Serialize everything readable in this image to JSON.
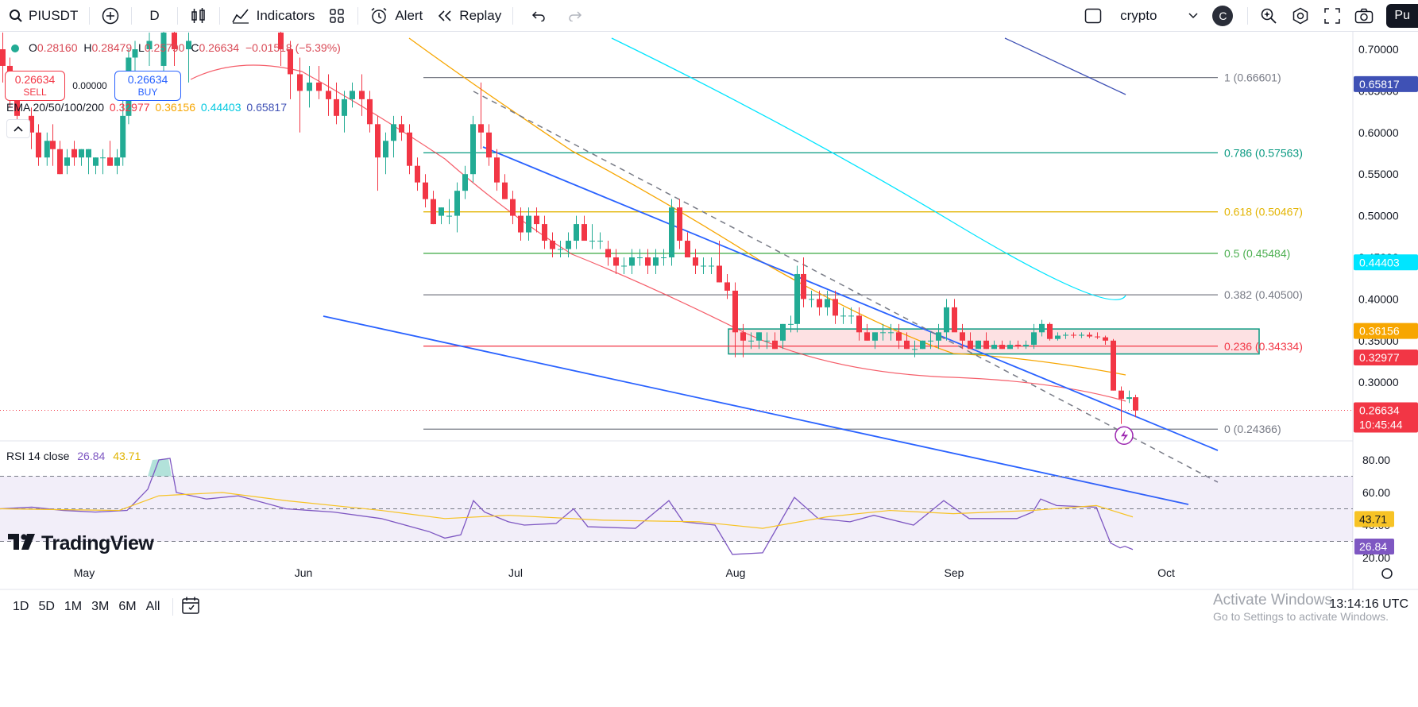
{
  "toolbar": {
    "symbol": "PIUSDT",
    "interval": "D",
    "indicators": "Indicators",
    "alert": "Alert",
    "replay": "Replay",
    "layout_name": "crypto",
    "user_initial": "C",
    "publish": "Pu"
  },
  "legend": {
    "o_label": "O",
    "o": "0.28160",
    "h_label": "H",
    "h": "0.28479",
    "l_label": "L",
    "l": "0.25790",
    "c_label": "C",
    "c": "0.26634",
    "change": "−0.01518 (−5.39%)",
    "sell_price": "0.26634",
    "sell_label": "SELL",
    "spread": "0.00000",
    "buy_price": "0.26634",
    "buy_label": "BUY",
    "ema_label": "EMA 20/50/100/200",
    "ema20": "0.32977",
    "ema50": "0.36156",
    "ema100": "0.44403",
    "ema200": "0.65817"
  },
  "rsi": {
    "label": "RSI 14 close",
    "value": "26.84",
    "ma": "43.71"
  },
  "brand": "TradingView",
  "timeframes": [
    "1D",
    "5D",
    "1M",
    "3M",
    "6M",
    "All"
  ],
  "clock": "13:14:16 UTC",
  "windows_notice": {
    "title": "Activate Windows",
    "subtitle": "Go to Settings to activate Windows."
  },
  "colors": {
    "up": "#22ab94",
    "down": "#f23645",
    "ema20": "#f23645",
    "ema50": "#f7a600",
    "ema100": "#00e5ff",
    "ema200": "#3f51b5",
    "channel": "#2962ff",
    "rsi": "#7e57c2",
    "rsi_ma": "#f7c325"
  },
  "chart_data": {
    "type": "candlestick",
    "x_labels": [
      "May",
      "Jun",
      "Jul",
      "Aug",
      "Sep",
      "Oct"
    ],
    "price_ticks": [
      "0.70000",
      "0.65000",
      "0.60000",
      "0.55000",
      "0.50000",
      "0.45000",
      "0.40000",
      "0.35000",
      "0.30000"
    ],
    "rsi_ticks": [
      "80.00",
      "60.00",
      "40.00",
      "20.00"
    ],
    "price_labels": [
      {
        "value": 0.65817,
        "text": "0.65817",
        "color": "#3f51b5"
      },
      {
        "value": 0.44403,
        "text": "0.44403",
        "color": "#00e5ff"
      },
      {
        "value": 0.36156,
        "text": "0.36156",
        "color": "#f7a600"
      },
      {
        "value": 0.32977,
        "text": "0.32977",
        "color": "#f23645"
      },
      {
        "value": 0.26634,
        "text": "0.26634",
        "color": "#f23645",
        "sub": "10:45:44"
      }
    ],
    "rsi_labels": [
      {
        "value": 43.71,
        "text": "43.71",
        "color": "#f7c325"
      },
      {
        "value": 26.84,
        "text": "26.84",
        "color": "#7e57c2"
      }
    ],
    "fib": [
      {
        "label": "1 (0.66601)",
        "value": 0.66601,
        "color": "#787b86"
      },
      {
        "label": "0.786 (0.57563)",
        "value": 0.57563,
        "color": "#089981"
      },
      {
        "label": "0.618 (0.50467)",
        "value": 0.50467,
        "color": "#e3b400"
      },
      {
        "label": "0.5 (0.45484)",
        "value": 0.45484,
        "color": "#4caf50"
      },
      {
        "label": "0.382 (0.40500)",
        "value": 0.405,
        "color": "#787b86"
      },
      {
        "label": "0.236 (0.34334)",
        "value": 0.34334,
        "color": "#f23645"
      },
      {
        "label": "0 (0.24366)",
        "value": 0.24366,
        "color": "#787b86"
      }
    ],
    "zone": {
      "top": 0.364,
      "bottom": 0.334
    }
  }
}
